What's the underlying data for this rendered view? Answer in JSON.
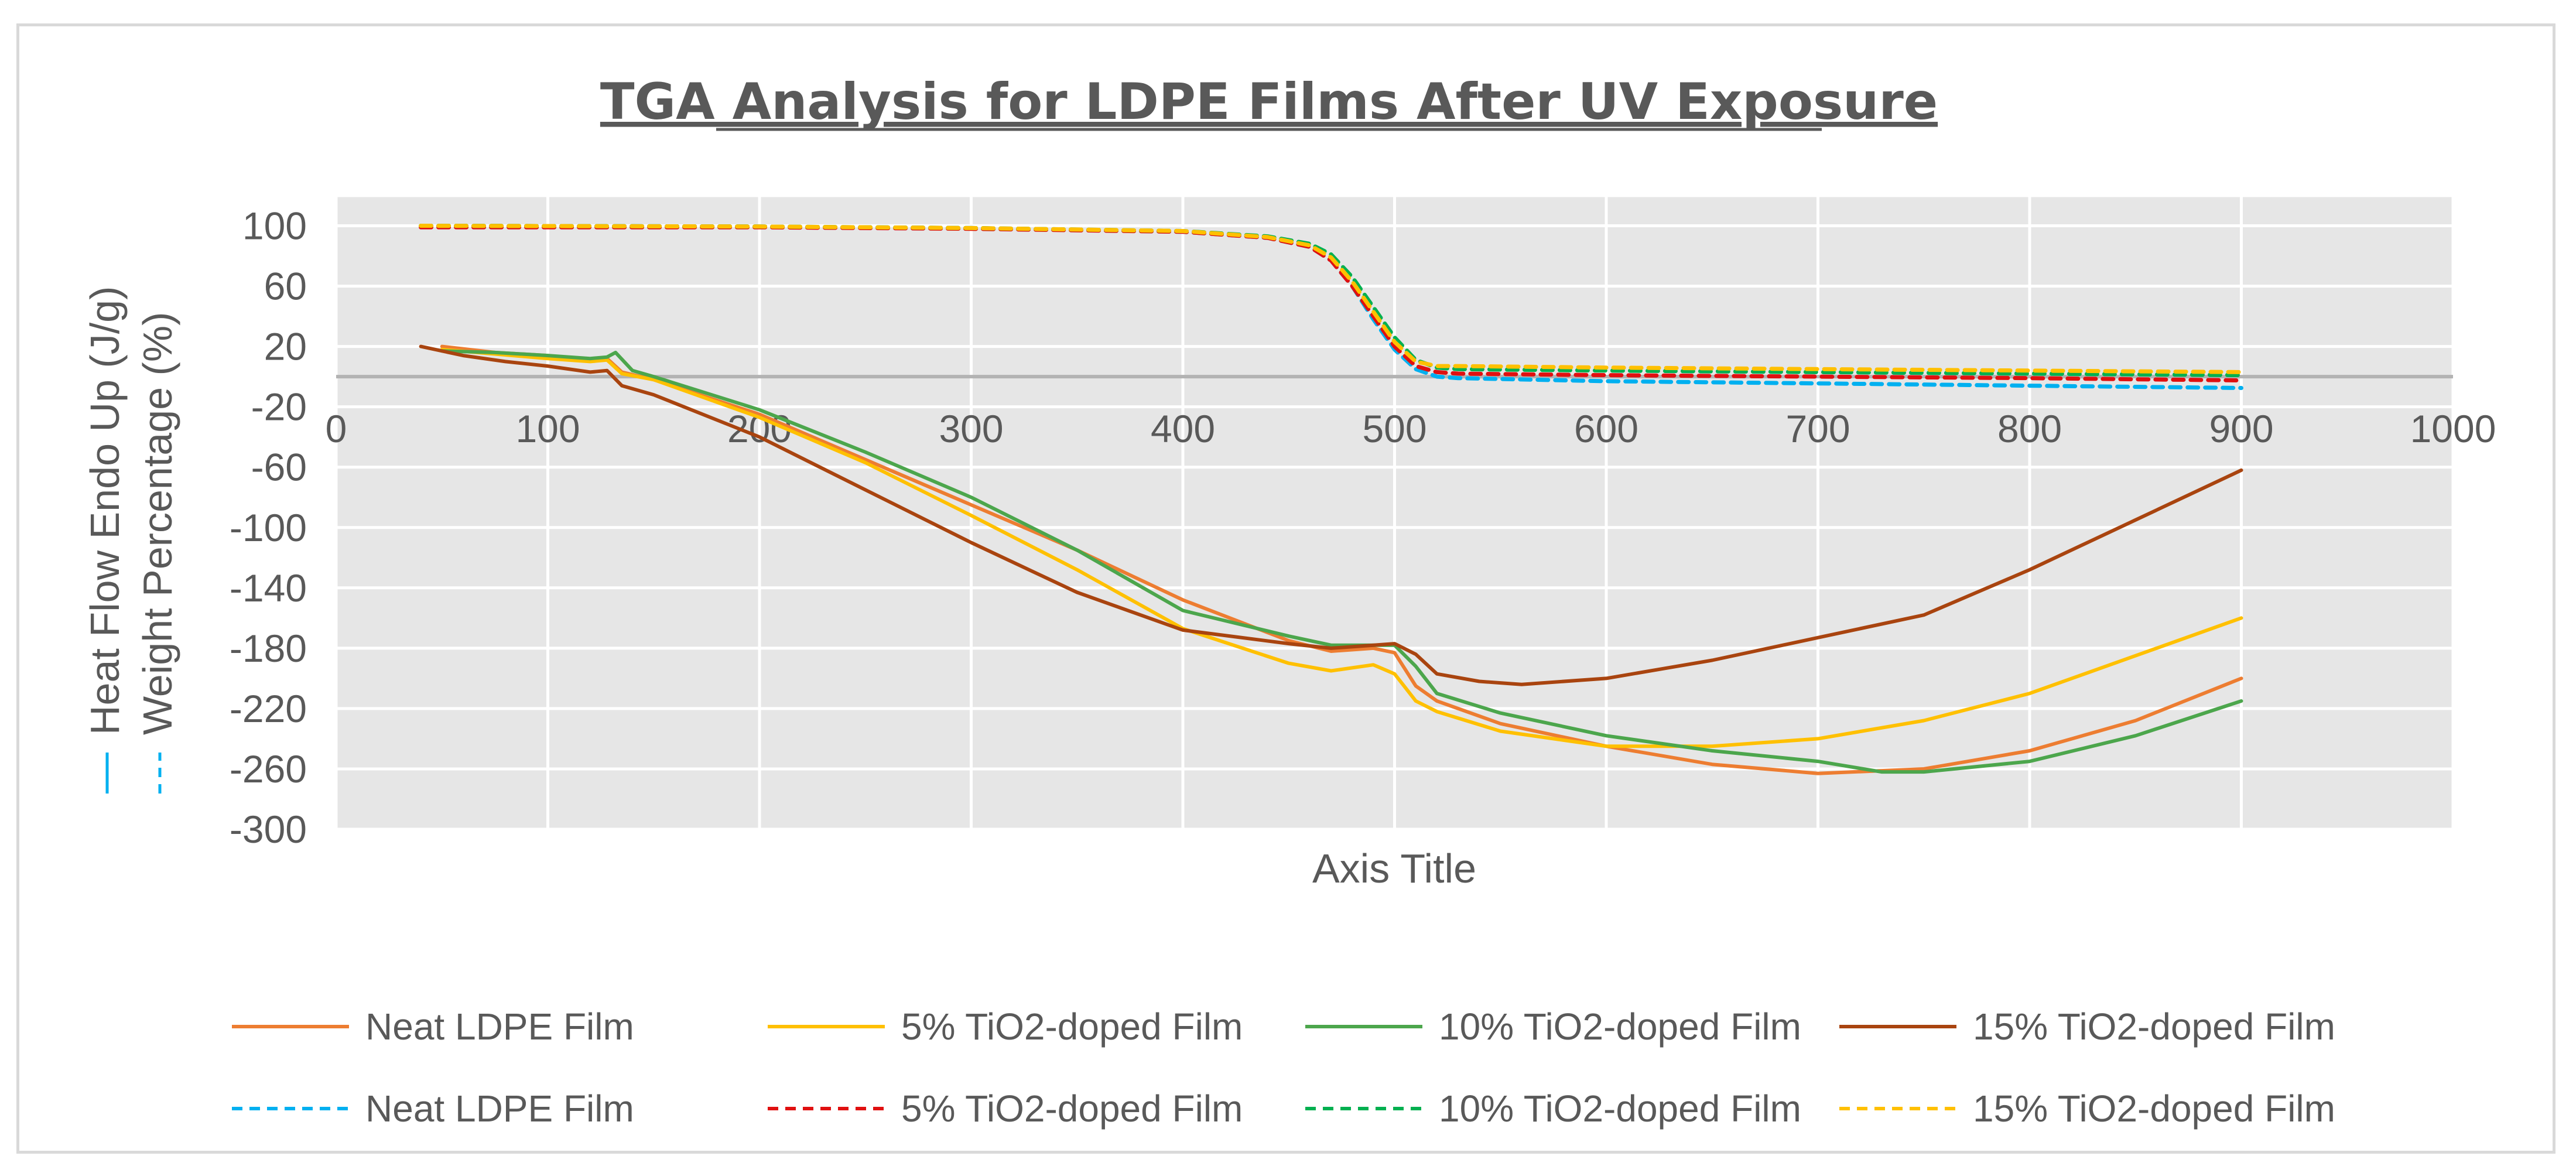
{
  "chart_data": {
    "type": "line",
    "title": "TGA Analysis for LDPE Films After UV Exposure",
    "xlabel": "Axis Title",
    "ylabel_heat_flow": "Heat Flow Endo Up (J/g)",
    "ylabel_weight": "Weight Percentage (%)",
    "xlim": [
      0,
      1000
    ],
    "ylim": [
      -300,
      120
    ],
    "x_ticks": [
      0,
      100,
      200,
      300,
      400,
      500,
      600,
      700,
      800,
      900,
      1000
    ],
    "y_ticks": [
      100,
      60,
      20,
      -20,
      -60,
      -100,
      -140,
      -180,
      -220,
      -260,
      -300
    ],
    "grid": true,
    "legend_position": "bottom",
    "series": [
      {
        "name": "Neat LDPE Film",
        "group": "heat_flow",
        "color": "#ED7D31",
        "style": "solid",
        "x": [
          50,
          75,
          100,
          120,
          128,
          135,
          150,
          200,
          250,
          300,
          350,
          400,
          450,
          470,
          490,
          500,
          510,
          520,
          550,
          600,
          650,
          700,
          750,
          800,
          850,
          900
        ],
        "y": [
          20,
          16,
          14,
          11,
          12,
          3,
          -2,
          -25,
          -55,
          -85,
          -115,
          -148,
          -175,
          -182,
          -180,
          -183,
          -205,
          -215,
          -230,
          -245,
          -257,
          -263,
          -260,
          -248,
          -228,
          -200
        ]
      },
      {
        "name": "5% TiO2-doped Film",
        "group": "heat_flow",
        "color": "#FFC000",
        "style": "solid",
        "x": [
          50,
          75,
          100,
          120,
          128,
          135,
          150,
          200,
          250,
          300,
          350,
          400,
          450,
          470,
          490,
          500,
          510,
          520,
          550,
          600,
          650,
          700,
          750,
          800,
          850,
          900
        ],
        "y": [
          18,
          15,
          12,
          10,
          11,
          2,
          -2,
          -27,
          -57,
          -92,
          -128,
          -167,
          -190,
          -195,
          -191,
          -197,
          -215,
          -222,
          -235,
          -245,
          -245,
          -240,
          -228,
          -210,
          -185,
          -160
        ]
      },
      {
        "name": "10% TiO2-doped Film",
        "group": "heat_flow",
        "color": "#4CA64C",
        "style": "solid",
        "x": [
          50,
          75,
          100,
          120,
          128,
          132,
          140,
          150,
          200,
          250,
          300,
          350,
          400,
          450,
          470,
          490,
          500,
          510,
          520,
          550,
          600,
          650,
          700,
          730,
          750,
          800,
          850,
          900
        ],
        "y": [
          17,
          16,
          14,
          12,
          13,
          16,
          4,
          0,
          -22,
          -50,
          -80,
          -115,
          -155,
          -172,
          -178,
          -178,
          -178,
          -192,
          -210,
          -223,
          -238,
          -248,
          -255,
          -262,
          -262,
          -255,
          -238,
          -215
        ]
      },
      {
        "name": "15% TiO2-doped Film",
        "group": "heat_flow",
        "color": "#A9440F",
        "style": "solid",
        "x": [
          40,
          60,
          80,
          100,
          120,
          128,
          135,
          150,
          200,
          250,
          300,
          350,
          400,
          450,
          470,
          490,
          500,
          510,
          520,
          540,
          560,
          600,
          650,
          700,
          750,
          800,
          850,
          900
        ],
        "y": [
          20,
          14,
          10,
          7,
          3,
          4,
          -6,
          -12,
          -40,
          -75,
          -110,
          -143,
          -168,
          -177,
          -180,
          -178,
          -177,
          -184,
          -197,
          -202,
          -204,
          -200,
          -188,
          -173,
          -158,
          -128,
          -95,
          -62
        ]
      },
      {
        "name": "Neat LDPE Film",
        "group": "weight",
        "color": "#00B0F0",
        "style": "dashed",
        "x": [
          40,
          200,
          300,
          400,
          440,
          460,
          470,
          480,
          490,
          500,
          510,
          520,
          530,
          600,
          700,
          800,
          900
        ],
        "y": [
          100,
          99.5,
          98.5,
          96,
          92,
          86,
          77,
          60,
          38,
          18,
          5,
          0,
          -1,
          -3,
          -4.5,
          -6,
          -7.5
        ]
      },
      {
        "name": "5% TiO2-doped Film",
        "group": "weight",
        "color": "#E01010",
        "style": "dashed",
        "x": [
          40,
          200,
          300,
          400,
          440,
          460,
          470,
          480,
          490,
          500,
          510,
          520,
          530,
          600,
          700,
          800,
          900
        ],
        "y": [
          99,
          99,
          98,
          96,
          92,
          86,
          77,
          60,
          40,
          20,
          7,
          3,
          2,
          1,
          0,
          -1,
          -2.5
        ]
      },
      {
        "name": "10% TiO2-doped Film",
        "group": "weight",
        "color": "#00B050",
        "style": "dashed",
        "x": [
          40,
          200,
          300,
          400,
          440,
          460,
          470,
          480,
          490,
          500,
          510,
          520,
          530,
          600,
          700,
          800,
          900
        ],
        "y": [
          100,
          99.5,
          98.5,
          96.5,
          93,
          88,
          81,
          66,
          46,
          26,
          11,
          6,
          5,
          4,
          3,
          2,
          1
        ]
      },
      {
        "name": "15% TiO2-doped Film",
        "group": "weight",
        "color": "#FFC000",
        "style": "dashed",
        "x": [
          40,
          200,
          300,
          400,
          440,
          460,
          470,
          480,
          490,
          500,
          510,
          520,
          530,
          600,
          700,
          800,
          900
        ],
        "y": [
          100,
          99.5,
          98.5,
          96.5,
          92.5,
          87,
          79,
          63,
          43,
          23,
          10,
          7,
          7,
          6,
          5,
          4,
          3
        ]
      }
    ]
  }
}
